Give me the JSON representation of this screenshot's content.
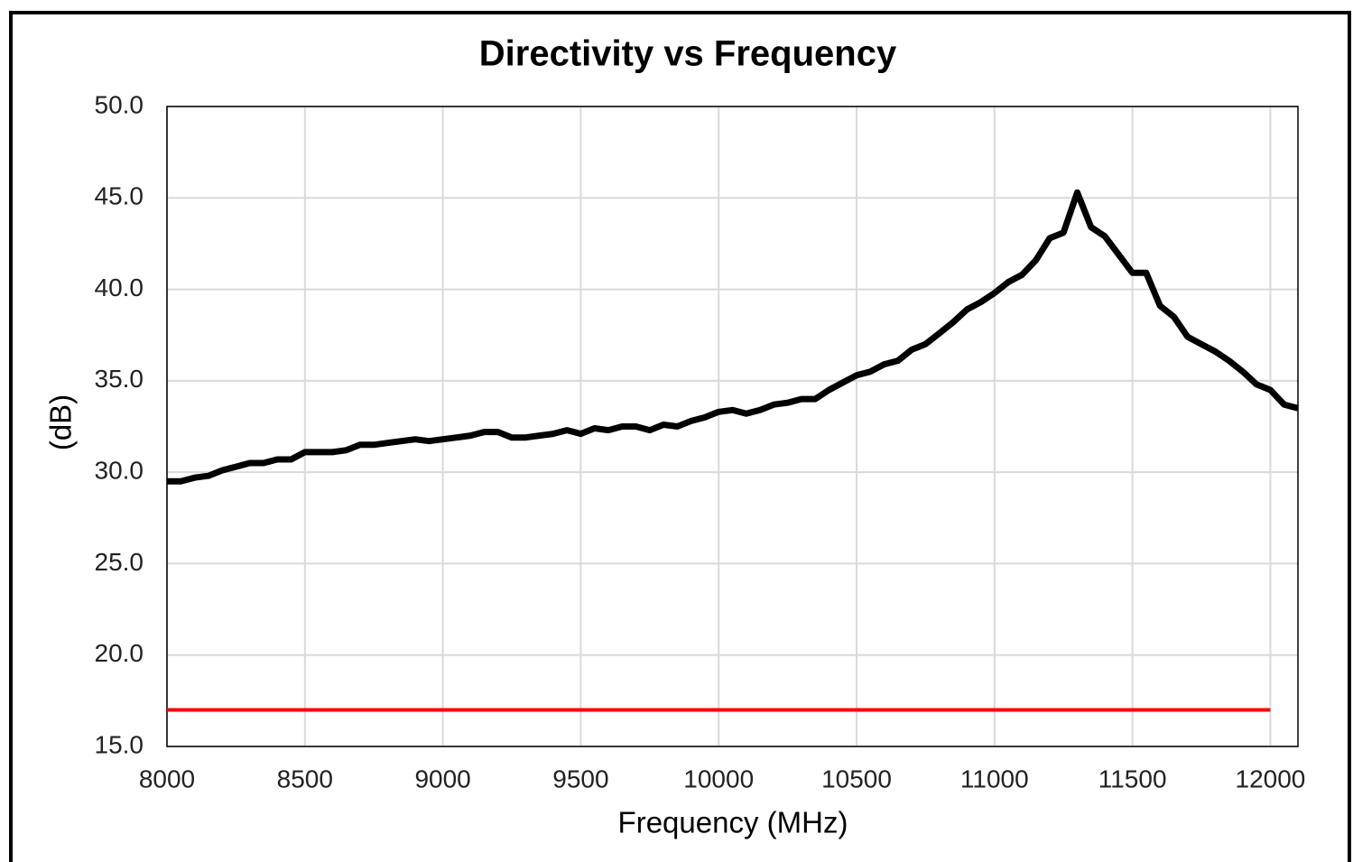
{
  "chart_data": {
    "type": "line",
    "title": "Directivity vs Frequency",
    "xlabel": "Frequency (MHz)",
    "ylabel": "(dB)",
    "xlim": [
      8000,
      12100
    ],
    "xticks": [
      8000,
      8500,
      9000,
      9500,
      10000,
      10500,
      11000,
      11500,
      12000
    ],
    "ylim": [
      15,
      50
    ],
    "yticks": [
      {
        "value": 15,
        "label": "15.0"
      },
      {
        "value": 20,
        "label": "20.0"
      },
      {
        "value": 25,
        "label": "25.0"
      },
      {
        "value": 30,
        "label": "30.0"
      },
      {
        "value": 35,
        "label": "35.0"
      },
      {
        "value": 40,
        "label": "40.0"
      },
      {
        "value": 45,
        "label": "45.0"
      },
      {
        "value": 50,
        "label": "50.0"
      }
    ],
    "grid": true,
    "series": [
      {
        "color": "#000000",
        "x": [
          8000,
          8050,
          8100,
          8150,
          8200,
          8250,
          8300,
          8350,
          8400,
          8450,
          8500,
          8550,
          8600,
          8650,
          8700,
          8750,
          8800,
          8850,
          8900,
          8950,
          9000,
          9050,
          9100,
          9150,
          9200,
          9250,
          9300,
          9350,
          9400,
          9450,
          9500,
          9550,
          9600,
          9650,
          9700,
          9750,
          9800,
          9850,
          9900,
          9950,
          10000,
          10050,
          10100,
          10150,
          10200,
          10250,
          10300,
          10350,
          10400,
          10450,
          10500,
          10550,
          10600,
          10650,
          10700,
          10750,
          10800,
          10850,
          10900,
          10950,
          11000,
          11050,
          11100,
          11150,
          11200,
          11250,
          11300,
          11350,
          11400,
          11450,
          11500,
          11550,
          11600,
          11650,
          11700,
          11750,
          11800,
          11850,
          11900,
          11950,
          12000,
          12050,
          12100
        ],
        "values": [
          29.5,
          29.5,
          29.7,
          29.8,
          30.1,
          30.3,
          30.5,
          30.5,
          30.7,
          30.7,
          31.1,
          31.1,
          31.1,
          31.2,
          31.5,
          31.5,
          31.6,
          31.7,
          31.8,
          31.7,
          31.8,
          31.9,
          32.0,
          32.2,
          32.2,
          31.9,
          31.9,
          32.0,
          32.1,
          32.3,
          32.1,
          32.4,
          32.3,
          32.5,
          32.5,
          32.3,
          32.6,
          32.5,
          32.8,
          33.0,
          33.3,
          33.4,
          33.2,
          33.4,
          33.7,
          33.8,
          34.0,
          34.0,
          34.5,
          34.9,
          35.3,
          35.5,
          35.9,
          36.1,
          36.7,
          37.0,
          37.6,
          38.2,
          38.9,
          39.3,
          39.8,
          40.4,
          40.8,
          41.6,
          42.8,
          43.1,
          45.3,
          43.4,
          42.9,
          41.9,
          40.9,
          40.9,
          39.1,
          38.5,
          37.4,
          37.0,
          36.6,
          36.1,
          35.5,
          34.8,
          34.5,
          33.7,
          33.5
        ]
      },
      {
        "color": "#ff0000",
        "x": [
          8000,
          12000
        ],
        "values": [
          17,
          17
        ]
      }
    ]
  }
}
